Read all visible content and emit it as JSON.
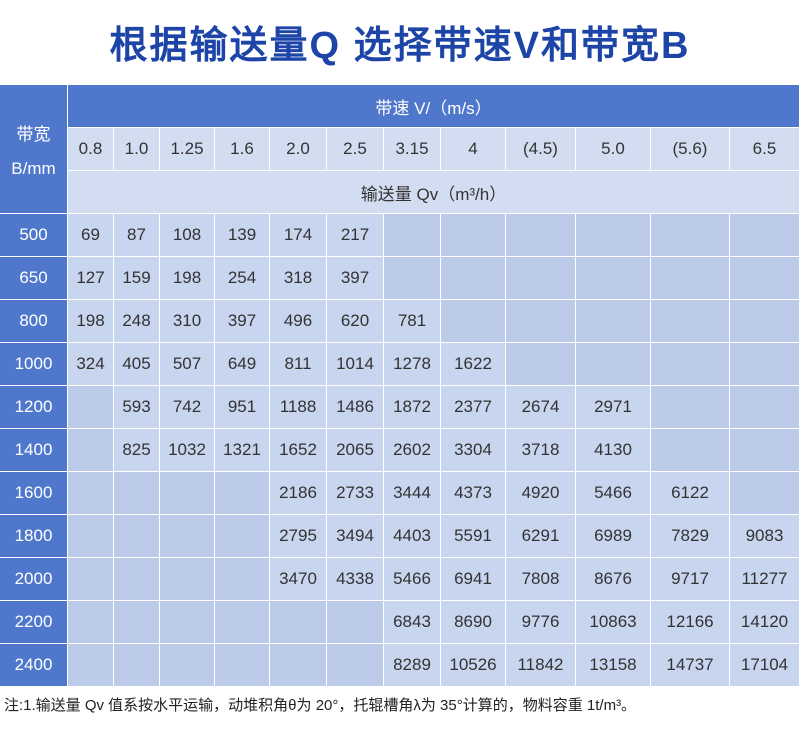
{
  "title": "根据输送量Q  选择带速V和带宽B",
  "table": {
    "row_header": "带宽",
    "row_header_unit": "B/mm",
    "speed_header": "带速 V/（m/s）",
    "speeds": [
      "0.8",
      "1.0",
      "1.25",
      "1.6",
      "2.0",
      "2.5",
      "3.15",
      "4",
      "(4.5)",
      "5.0",
      "(5.6)",
      "6.5"
    ],
    "capacity_header": "输送量 Qv（m³/h）",
    "widths": [
      "500",
      "650",
      "800",
      "1000",
      "1200",
      "1400",
      "1600",
      "1800",
      "2000",
      "2200",
      "2400"
    ],
    "rows": [
      [
        69,
        87,
        108,
        139,
        174,
        217,
        null,
        null,
        null,
        null,
        null,
        null
      ],
      [
        127,
        159,
        198,
        254,
        318,
        397,
        null,
        null,
        null,
        null,
        null,
        null
      ],
      [
        198,
        248,
        310,
        397,
        496,
        620,
        781,
        null,
        null,
        null,
        null,
        null
      ],
      [
        324,
        405,
        507,
        649,
        811,
        1014,
        1278,
        1622,
        null,
        null,
        null,
        null
      ],
      [
        null,
        593,
        742,
        951,
        1188,
        1486,
        1872,
        2377,
        2674,
        2971,
        null,
        null
      ],
      [
        null,
        825,
        1032,
        1321,
        1652,
        2065,
        2602,
        3304,
        3718,
        4130,
        null,
        null
      ],
      [
        null,
        null,
        null,
        null,
        2186,
        2733,
        3444,
        4373,
        4920,
        5466,
        6122,
        null
      ],
      [
        null,
        null,
        null,
        null,
        2795,
        3494,
        4403,
        5591,
        6291,
        6989,
        7829,
        9083
      ],
      [
        null,
        null,
        null,
        null,
        3470,
        4338,
        5466,
        6941,
        7808,
        8676,
        9717,
        11277
      ],
      [
        null,
        null,
        null,
        null,
        null,
        null,
        6843,
        8690,
        9776,
        10863,
        12166,
        14120
      ],
      [
        null,
        null,
        null,
        null,
        null,
        null,
        8289,
        10526,
        11842,
        13158,
        14737,
        17104
      ]
    ]
  },
  "note": "注:1.输送量 Qv 值系按水平运输，动堆积角θ为 20°，托辊槽角λ为 35°计算的，物料容重 1t/m³。"
}
